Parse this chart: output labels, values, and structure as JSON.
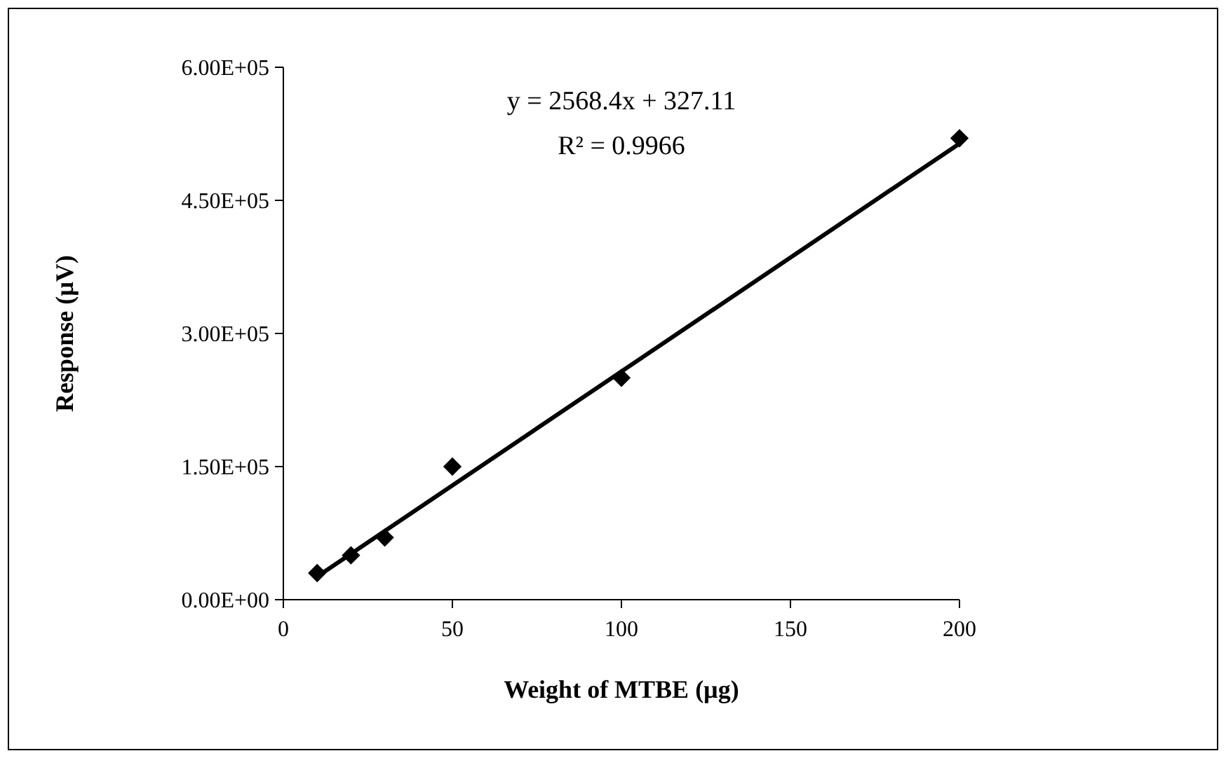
{
  "chart_data": {
    "type": "scatter",
    "xlabel": "Weight of MTBE (µg)",
    "ylabel": "Response (µV)",
    "xlim": [
      0,
      200
    ],
    "xticks": [
      0,
      50,
      100,
      150,
      200
    ],
    "ylim": [
      0,
      600000
    ],
    "yticks": [
      {
        "value": 0,
        "label": "0.00E+00"
      },
      {
        "value": 150000,
        "label": "1.50E+05"
      },
      {
        "value": 300000,
        "label": "3.00E+05"
      },
      {
        "value": 450000,
        "label": "4.50E+05"
      },
      {
        "value": 600000,
        "label": "6.00E+05"
      }
    ],
    "x": [
      10,
      20,
      30,
      50,
      100,
      200
    ],
    "series": [
      {
        "color": "#000000",
        "marker": "diamond",
        "values": [
          30000,
          50000,
          70000,
          150000,
          250000,
          520000
        ]
      },
      {
        "type": "line",
        "color": "#000000",
        "line_style": "solid",
        "x": [
          10,
          200
        ],
        "values": [
          26000,
          514000
        ]
      }
    ],
    "annotations": [
      "y = 2568.4x + 327.11",
      "R² = 0.9966"
    ],
    "grid": false
  }
}
